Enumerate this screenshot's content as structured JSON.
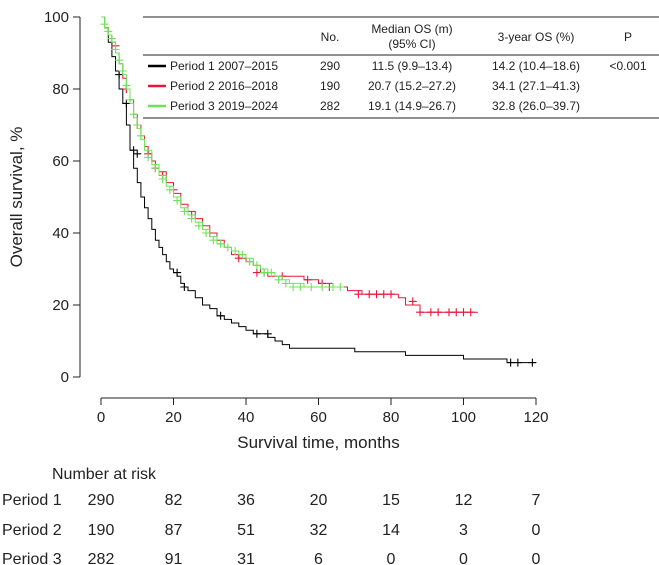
{
  "chart_data": {
    "type": "line",
    "subtype": "kaplan-meier",
    "title": "",
    "xlabel": "Survival time, months",
    "ylabel": "Overall survival, %",
    "xlim": [
      0,
      120
    ],
    "ylim": [
      0,
      100
    ],
    "x_ticks": [
      0,
      20,
      40,
      60,
      80,
      100,
      120
    ],
    "y_ticks": [
      0,
      20,
      40,
      60,
      80,
      100
    ],
    "grid": false,
    "legend_position": "top-right",
    "series": [
      {
        "name": "Period 1 2007–2015",
        "color": "#000000",
        "points": [
          [
            0,
            100
          ],
          [
            1,
            97
          ],
          [
            2,
            93
          ],
          [
            3,
            89
          ],
          [
            4,
            85
          ],
          [
            5,
            80
          ],
          [
            6,
            76
          ],
          [
            7,
            70
          ],
          [
            8,
            63
          ],
          [
            9,
            58
          ],
          [
            10,
            54
          ],
          [
            11,
            50
          ],
          [
            12,
            47
          ],
          [
            13,
            44
          ],
          [
            14,
            41
          ],
          [
            15,
            38
          ],
          [
            16,
            36
          ],
          [
            17,
            34
          ],
          [
            18,
            32
          ],
          [
            19,
            30
          ],
          [
            20,
            29
          ],
          [
            21,
            28
          ],
          [
            22,
            26
          ],
          [
            23,
            25
          ],
          [
            24,
            24
          ],
          [
            26,
            22
          ],
          [
            28,
            20
          ],
          [
            30,
            19
          ],
          [
            32,
            17
          ],
          [
            34,
            16
          ],
          [
            36,
            15
          ],
          [
            38,
            14
          ],
          [
            40,
            13
          ],
          [
            42,
            12
          ],
          [
            44,
            12
          ],
          [
            46,
            11
          ],
          [
            48,
            10
          ],
          [
            50,
            9
          ],
          [
            52,
            8
          ],
          [
            56,
            8
          ],
          [
            62,
            8
          ],
          [
            70,
            7
          ],
          [
            78,
            7
          ],
          [
            84,
            6
          ],
          [
            92,
            6
          ],
          [
            100,
            5
          ],
          [
            106,
            5
          ],
          [
            112,
            4
          ],
          [
            120,
            4
          ]
        ],
        "censored": [
          [
            5,
            84
          ],
          [
            7,
            76
          ],
          [
            9,
            63
          ],
          [
            10,
            62
          ],
          [
            21,
            29
          ],
          [
            23,
            25
          ],
          [
            33,
            17
          ],
          [
            43,
            12
          ],
          [
            46,
            12
          ],
          [
            113,
            4
          ],
          [
            115,
            4
          ],
          [
            119,
            4
          ]
        ]
      },
      {
        "name": "Period 2 2016–2018",
        "color": "#e8163b",
        "points": [
          [
            0,
            100
          ],
          [
            1,
            97
          ],
          [
            2,
            95
          ],
          [
            3,
            93
          ],
          [
            4,
            90
          ],
          [
            5,
            87
          ],
          [
            6,
            83
          ],
          [
            7,
            80
          ],
          [
            8,
            77
          ],
          [
            9,
            73
          ],
          [
            10,
            70
          ],
          [
            11,
            67
          ],
          [
            12,
            64
          ],
          [
            13,
            62
          ],
          [
            14,
            60
          ],
          [
            15,
            58
          ],
          [
            16,
            57
          ],
          [
            18,
            54
          ],
          [
            20,
            51
          ],
          [
            22,
            48
          ],
          [
            24,
            46
          ],
          [
            26,
            44
          ],
          [
            28,
            42
          ],
          [
            30,
            40
          ],
          [
            32,
            38
          ],
          [
            34,
            36
          ],
          [
            36,
            34
          ],
          [
            38,
            33
          ],
          [
            40,
            32
          ],
          [
            42,
            31
          ],
          [
            44,
            29
          ],
          [
            46,
            28
          ],
          [
            50,
            28
          ],
          [
            56,
            27
          ],
          [
            60,
            26
          ],
          [
            64,
            25
          ],
          [
            68,
            24
          ],
          [
            72,
            23
          ],
          [
            78,
            23
          ],
          [
            82,
            22
          ],
          [
            84,
            20
          ],
          [
            88,
            18
          ],
          [
            96,
            18
          ],
          [
            104,
            18
          ]
        ],
        "censored": [
          [
            4,
            92
          ],
          [
            7,
            80
          ],
          [
            10,
            70
          ],
          [
            13,
            62
          ],
          [
            15,
            58
          ],
          [
            17,
            56
          ],
          [
            20,
            52
          ],
          [
            25,
            45
          ],
          [
            30,
            40
          ],
          [
            38,
            33
          ],
          [
            43,
            29
          ],
          [
            45,
            29
          ],
          [
            50,
            28
          ],
          [
            57,
            27
          ],
          [
            61,
            26
          ],
          [
            63,
            25
          ],
          [
            71,
            23
          ],
          [
            74,
            23
          ],
          [
            76,
            23
          ],
          [
            78,
            23
          ],
          [
            80,
            23
          ],
          [
            86,
            21
          ],
          [
            88,
            18
          ],
          [
            91,
            18
          ],
          [
            93,
            18
          ],
          [
            96,
            18
          ],
          [
            98,
            18
          ],
          [
            100,
            18
          ],
          [
            102,
            18
          ]
        ]
      },
      {
        "name": "Period 3 2019–2024",
        "color": "#6ee35a",
        "points": [
          [
            0,
            100
          ],
          [
            1,
            97
          ],
          [
            2,
            95
          ],
          [
            3,
            93
          ],
          [
            4,
            90
          ],
          [
            5,
            87
          ],
          [
            6,
            84
          ],
          [
            7,
            80
          ],
          [
            8,
            76
          ],
          [
            9,
            72
          ],
          [
            10,
            69
          ],
          [
            11,
            66
          ],
          [
            12,
            63
          ],
          [
            14,
            59
          ],
          [
            16,
            56
          ],
          [
            18,
            53
          ],
          [
            20,
            50
          ],
          [
            22,
            47
          ],
          [
            24,
            45
          ],
          [
            26,
            43
          ],
          [
            28,
            41
          ],
          [
            30,
            39
          ],
          [
            32,
            37
          ],
          [
            34,
            36
          ],
          [
            36,
            35
          ],
          [
            38,
            34
          ],
          [
            40,
            33
          ],
          [
            42,
            31
          ],
          [
            44,
            30
          ],
          [
            46,
            29
          ],
          [
            48,
            28
          ],
          [
            50,
            27
          ],
          [
            52,
            26
          ],
          [
            56,
            25
          ],
          [
            67,
            25
          ]
        ],
        "censored": [
          [
            1,
            98
          ],
          [
            2,
            96
          ],
          [
            3,
            94
          ],
          [
            4,
            91
          ],
          [
            5,
            88
          ],
          [
            6,
            85
          ],
          [
            7,
            81
          ],
          [
            8,
            77
          ],
          [
            9,
            73
          ],
          [
            10,
            70
          ],
          [
            11,
            67
          ],
          [
            13,
            61
          ],
          [
            15,
            58
          ],
          [
            17,
            55
          ],
          [
            19,
            52
          ],
          [
            21,
            49
          ],
          [
            23,
            46
          ],
          [
            25,
            44
          ],
          [
            27,
            42
          ],
          [
            29,
            40
          ],
          [
            31,
            38
          ],
          [
            33,
            37
          ],
          [
            35,
            36
          ],
          [
            37,
            35
          ],
          [
            39,
            34
          ],
          [
            41,
            32
          ],
          [
            43,
            31
          ],
          [
            45,
            29
          ],
          [
            47,
            29
          ],
          [
            49,
            27
          ],
          [
            51,
            26
          ],
          [
            53,
            25
          ],
          [
            55,
            25
          ],
          [
            58,
            25
          ],
          [
            61,
            25
          ],
          [
            64,
            25
          ],
          [
            66,
            25
          ]
        ]
      }
    ],
    "legend_table": {
      "headers": [
        "",
        "No.",
        "Median OS (m)\n(95% CI)",
        "3-year OS (%)",
        "P"
      ],
      "rows": [
        [
          "Period 1 2007–2015",
          "290",
          "11.5 (9.9–13.4)",
          "14.2 (10.4–18.6)",
          "<0.001"
        ],
        [
          "Period 2 2016–2018",
          "190",
          "20.7 (15.2–27.2)",
          "34.1 (27.1–41.3)",
          ""
        ],
        [
          "Period 3 2019–2024",
          "282",
          "19.1 (14.9–26.7)",
          "32.8 (26.0–39.7)",
          ""
        ]
      ]
    },
    "risk_table": {
      "title": "Number at risk",
      "times": [
        0,
        20,
        40,
        60,
        80,
        100,
        120
      ],
      "rows": [
        {
          "label": "Period 1",
          "values": [
            "290",
            "82",
            "36",
            "20",
            "15",
            "12",
            "7"
          ]
        },
        {
          "label": "Period 2",
          "values": [
            "190",
            "87",
            "51",
            "32",
            "14",
            "3",
            "0"
          ]
        },
        {
          "label": "Period 3",
          "values": [
            "282",
            "91",
            "31",
            "6",
            "0",
            "0",
            "0"
          ]
        }
      ]
    }
  }
}
